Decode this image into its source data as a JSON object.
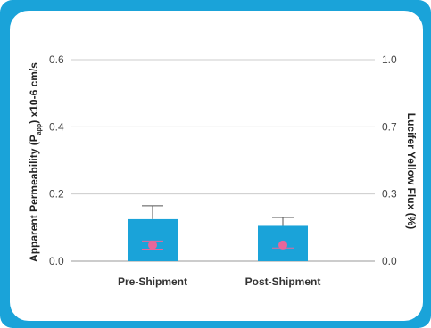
{
  "chart_data": {
    "type": "bar",
    "categories": [
      "Pre-Shipment",
      "Post-Shipment"
    ],
    "series": [
      {
        "name": "Apparent Permeability",
        "axis": "left",
        "values": [
          0.125,
          0.105
        ],
        "error_upper": [
          0.165,
          0.13
        ],
        "color": "#1aa3d9"
      },
      {
        "name": "Lucifer Yellow Flux",
        "axis": "right",
        "mark": "point",
        "values": [
          0.08,
          0.08
        ],
        "error": [
          0.02,
          0.015
        ],
        "color": "#e8669a"
      }
    ],
    "ylabel": "Apparent Permeability (P",
    "ylabel_sub": "app",
    "ylabel_suffix": ") x10-6 cm/s",
    "ylim": [
      0,
      0.6
    ],
    "yticks": [
      "0.0",
      "0.2",
      "0.4",
      "0.6"
    ],
    "ylabel_right": "Lucifer Yellow Flux (%)",
    "ylim_right": [
      0,
      1.0
    ],
    "yticks_right": [
      "0.0",
      "0.3",
      "0.7",
      "1.0"
    ],
    "yticks_right_values": [
      0,
      0.3333,
      0.6667,
      1.0
    ],
    "grid": true,
    "legend": "none"
  }
}
